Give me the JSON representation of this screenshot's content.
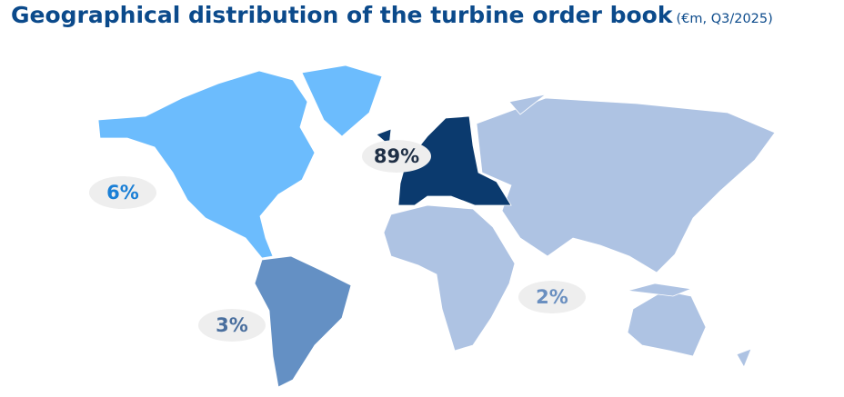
{
  "header": {
    "title": "Geographical distribution of the turbine order book",
    "subtitle": "(€m, Q3/2025)"
  },
  "regions": [
    {
      "label": "89%"
    },
    {
      "label": "6%"
    },
    {
      "label": "3%"
    },
    {
      "label": "2%"
    }
  ]
}
